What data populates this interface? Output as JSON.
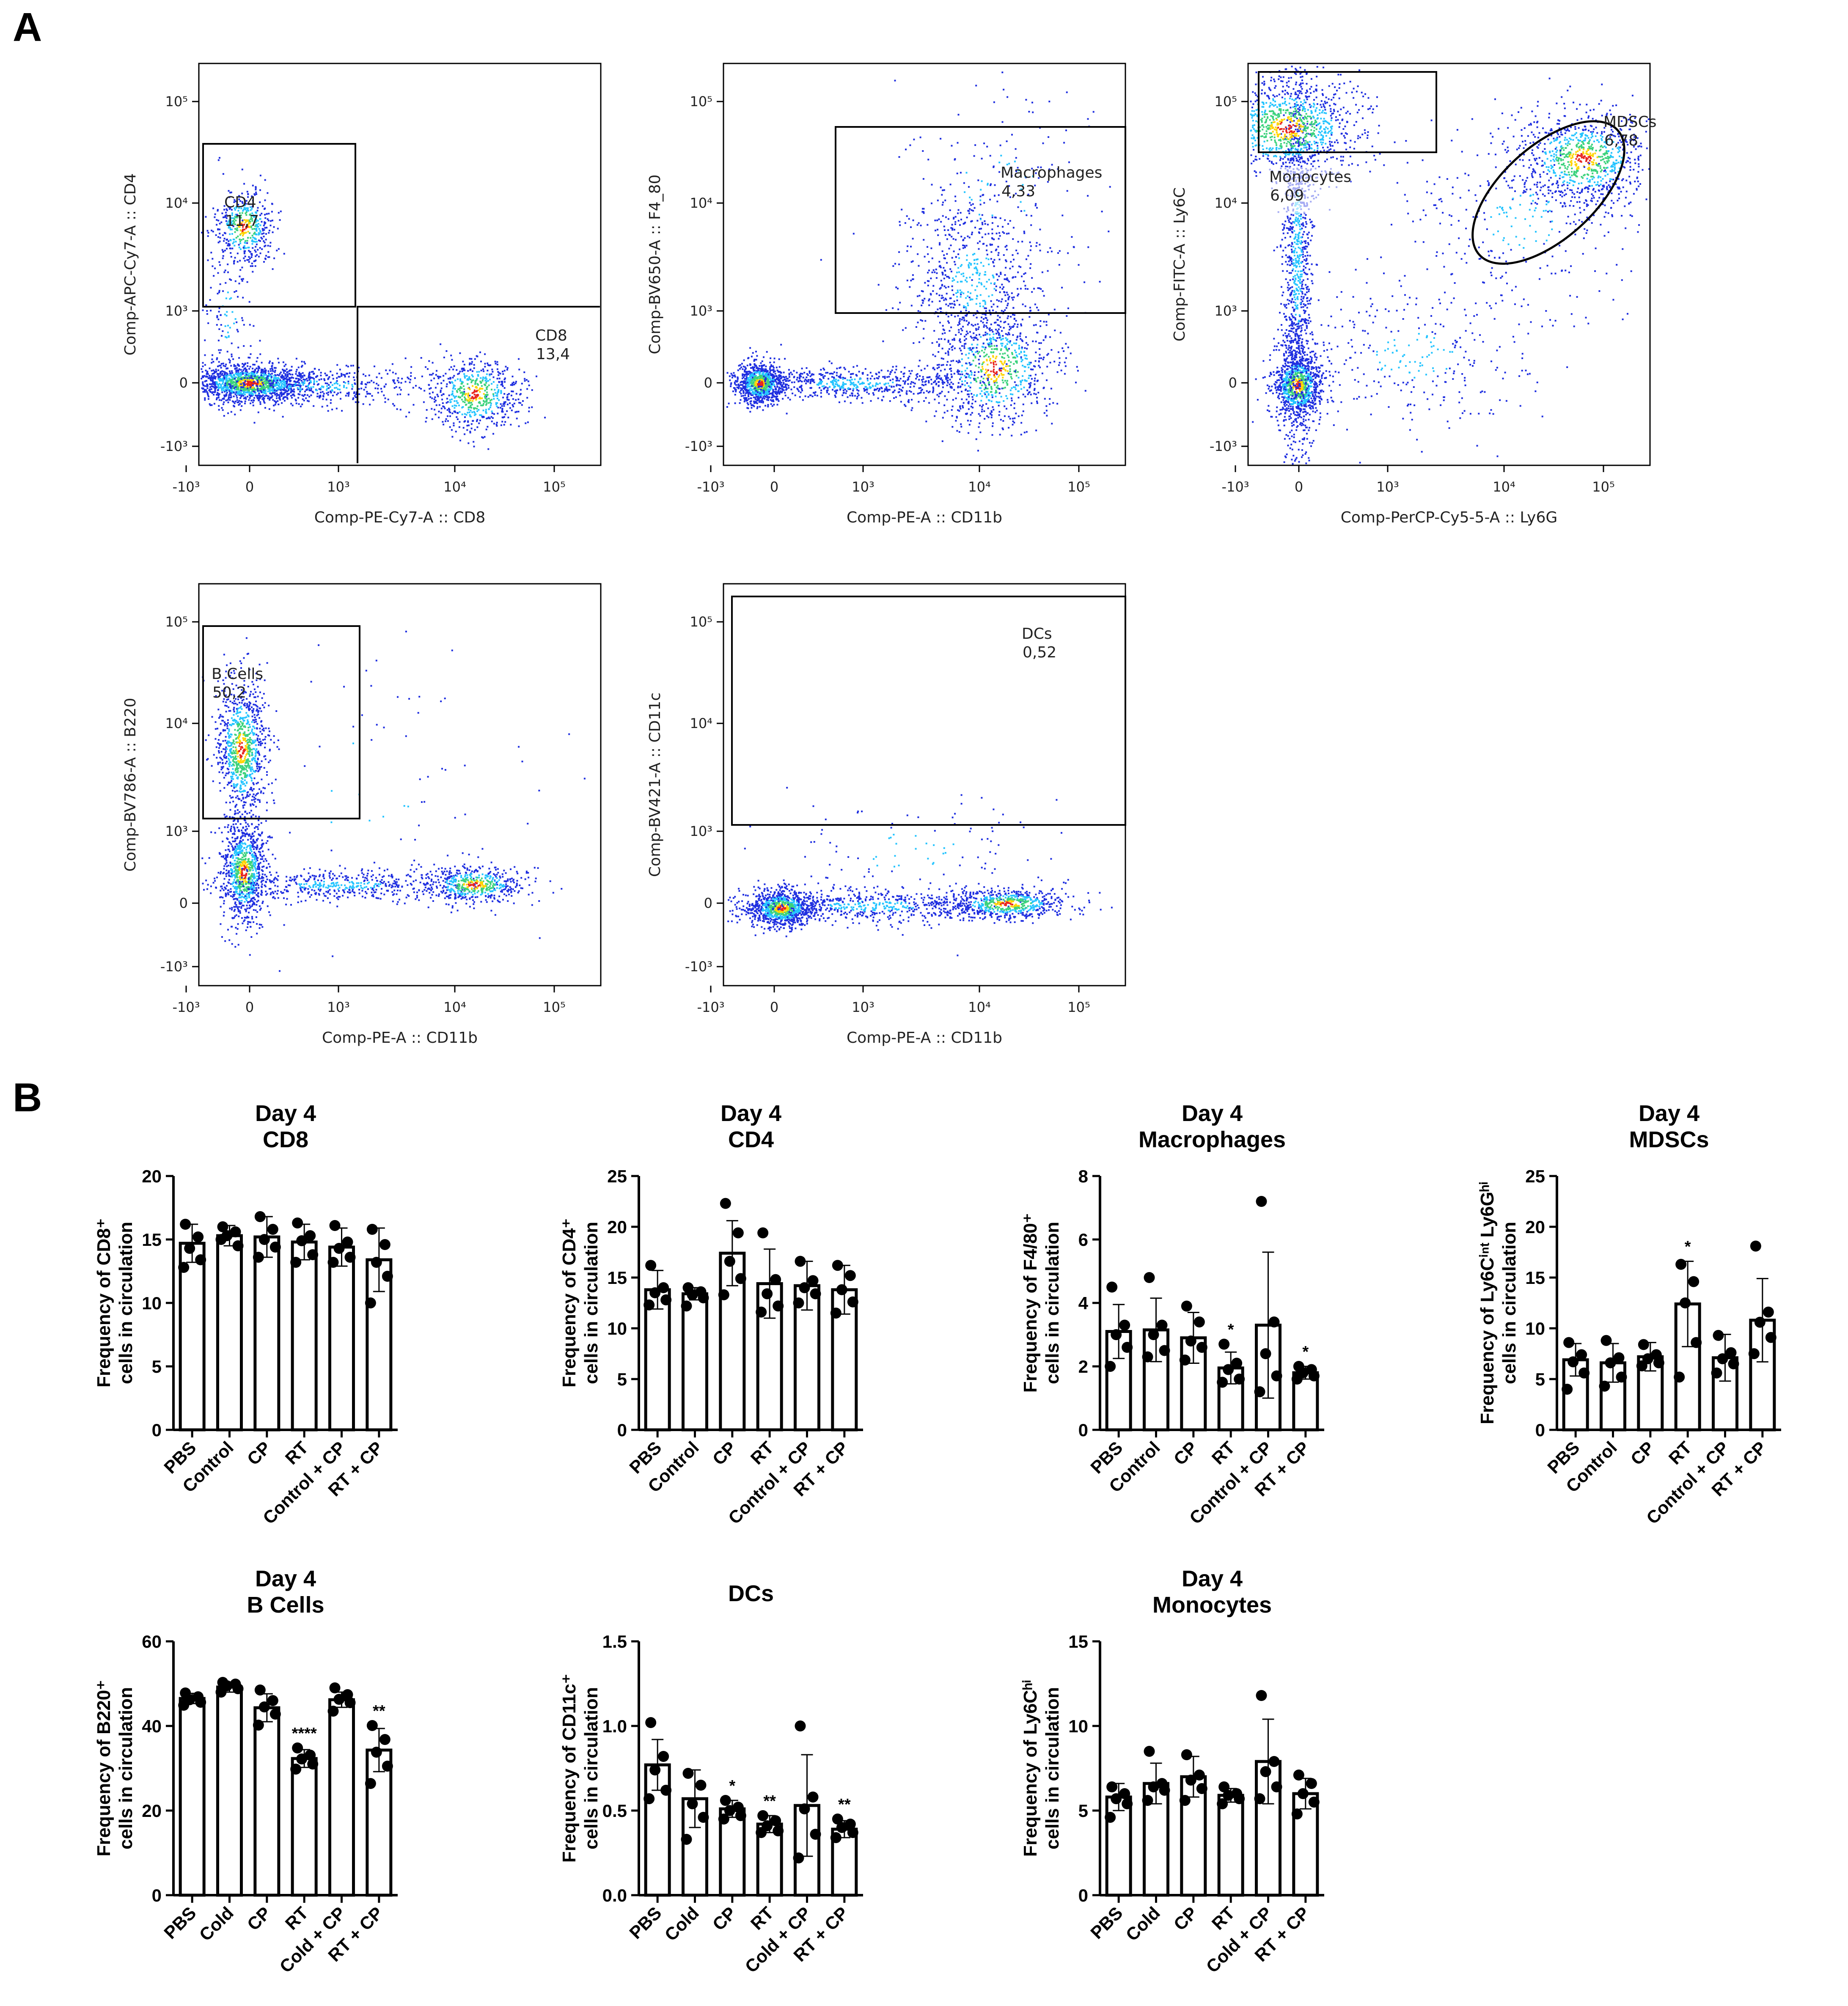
{
  "panel_labels": {
    "a": "A",
    "b": "B"
  },
  "colors": {
    "scatter_low": "#1f2fe0",
    "scatter_mid": "#25c4ff",
    "scatter_high": "#ffd400",
    "scatter_peak": "#e8251f",
    "bar_outline": "#000000",
    "dot": "#000000"
  },
  "flow_plots": [
    {
      "xlabel": "Comp-PE-Cy7-A :: CD8",
      "ylabel": "Comp-APC-Cy7-A :: CD4",
      "xticks": [
        "-10³",
        "0",
        "10³",
        "10⁴",
        "10⁵"
      ],
      "yticks": [
        "10⁵",
        "10⁴",
        "10³",
        "0",
        "-10³"
      ],
      "gates": [
        {
          "name": "CD4",
          "value": "11,7"
        },
        {
          "name": "CD8",
          "value": "13,4"
        }
      ]
    },
    {
      "xlabel": "Comp-PE-A :: CD11b",
      "ylabel": "Comp-BV650-A :: F4_80",
      "xticks": [
        "-10³",
        "0",
        "10³",
        "10⁴",
        "10⁵"
      ],
      "yticks": [
        "10⁵",
        "10⁴",
        "10³",
        "0",
        "-10³"
      ],
      "gates": [
        {
          "name": "Macrophages",
          "value": "4,33"
        }
      ]
    },
    {
      "xlabel": "Comp-PerCP-Cy5-5-A :: Ly6G",
      "ylabel": "Comp-FITC-A :: Ly6C",
      "xticks": [
        "-10³",
        "0",
        "10³",
        "10⁴",
        "10⁵"
      ],
      "yticks": [
        "10⁵",
        "10⁴",
        "10³",
        "0",
        "-10³"
      ],
      "gates": [
        {
          "name": "Monocytes",
          "value": "6,09"
        },
        {
          "name": "MDSCs",
          "value": "6,78"
        }
      ]
    },
    {
      "xlabel": "Comp-PE-A :: CD11b",
      "ylabel": "Comp-BV786-A :: B220",
      "xticks": [
        "-10³",
        "0",
        "10³",
        "10⁴",
        "10⁵"
      ],
      "yticks": [
        "10⁵",
        "10⁴",
        "10³",
        "0",
        "-10³"
      ],
      "gates": [
        {
          "name": "B Cells",
          "value": "50,2"
        }
      ]
    },
    {
      "xlabel": "Comp-PE-A :: CD11b",
      "ylabel": "Comp-BV421-A :: CD11c",
      "xticks": [
        "-10³",
        "0",
        "10³",
        "10⁴",
        "10⁵"
      ],
      "yticks": [
        "10⁵",
        "10⁴",
        "10³",
        "0",
        "-10³"
      ],
      "gates": [
        {
          "name": "DCs",
          "value": "0,52"
        }
      ]
    }
  ],
  "chart_data": [
    {
      "type": "bar",
      "title": [
        "Day 4",
        "CD8"
      ],
      "ylabel": [
        "Frequency of CD8⁺",
        "cells in circulation"
      ],
      "categories": [
        "PBS",
        "Control",
        "CP",
        "RT",
        "Control + CP",
        "RT + CP"
      ],
      "values": [
        14.7,
        15.3,
        15.2,
        14.8,
        14.4,
        13.4
      ],
      "sd": [
        1.5,
        0.8,
        1.6,
        1.4,
        1.5,
        2.5
      ],
      "points": [
        [
          16.2,
          15.2,
          14.3,
          13.4,
          12.8
        ],
        [
          16.0,
          15.6,
          15.3,
          14.5,
          15.0
        ],
        [
          16.8,
          15.8,
          15.0,
          14.4,
          13.6
        ],
        [
          16.3,
          15.3,
          14.9,
          13.8,
          13.2
        ],
        [
          16.1,
          14.8,
          14.3,
          13.6,
          13.2
        ],
        [
          15.8,
          14.6,
          13.2,
          12.1,
          10.0
        ]
      ],
      "significance": [
        "",
        "",
        "",
        "",
        "",
        ""
      ],
      "ylim": [
        0,
        20
      ],
      "yticks": [
        "0",
        "5",
        "10",
        "15",
        "20"
      ]
    },
    {
      "type": "bar",
      "title": [
        "Day 4",
        "CD4"
      ],
      "ylabel": [
        "Frequency of CD4⁺",
        "cells in circulation"
      ],
      "categories": [
        "PBS",
        "Control",
        "CP",
        "RT",
        "Control + CP",
        "RT + CP"
      ],
      "values": [
        13.8,
        13.4,
        17.4,
        14.4,
        14.2,
        13.8
      ],
      "sd": [
        1.9,
        0.6,
        3.2,
        3.4,
        2.4,
        2.4
      ],
      "points": [
        [
          16.2,
          14.0,
          13.5,
          12.8,
          12.3
        ],
        [
          14.0,
          13.6,
          13.3,
          13.0,
          12.2
        ],
        [
          22.3,
          19.4,
          16.6,
          14.9,
          13.3
        ],
        [
          19.4,
          14.8,
          13.4,
          12.2,
          11.6
        ],
        [
          16.6,
          14.7,
          14.0,
          13.4,
          12.5
        ],
        [
          16.2,
          15.2,
          13.8,
          12.6,
          11.5
        ]
      ],
      "significance": [
        "",
        "",
        "",
        "",
        "",
        ""
      ],
      "ylim": [
        0,
        25
      ],
      "yticks": [
        "0",
        "5",
        "10",
        "15",
        "20",
        "25"
      ]
    },
    {
      "type": "bar",
      "title": [
        "Day 4",
        "Macrophages"
      ],
      "ylabel": [
        "Frequency of F4/80⁺",
        "cells in circulation"
      ],
      "categories": [
        "PBS",
        "Control",
        "CP",
        "RT",
        "Control + CP",
        "RT + CP"
      ],
      "values": [
        3.1,
        3.15,
        2.9,
        1.95,
        3.3,
        1.8
      ],
      "sd": [
        0.85,
        1.0,
        0.8,
        0.5,
        2.3,
        0.2
      ],
      "points": [
        [
          4.5,
          3.3,
          3.0,
          2.6,
          2.0
        ],
        [
          4.8,
          3.3,
          3.0,
          2.5,
          2.3
        ],
        [
          3.9,
          3.4,
          2.8,
          2.6,
          2.2
        ],
        [
          2.7,
          2.1,
          1.9,
          1.6,
          1.5
        ],
        [
          7.2,
          3.4,
          2.4,
          1.7,
          1.2
        ],
        [
          2.0,
          1.9,
          1.8,
          1.7,
          1.6
        ]
      ],
      "significance": [
        "",
        "",
        "",
        "*",
        "",
        "*"
      ],
      "ylim": [
        0,
        8
      ],
      "yticks": [
        "0",
        "2",
        "4",
        "6",
        "8"
      ]
    },
    {
      "type": "bar",
      "title": [
        "Day 4",
        "MDSCs"
      ],
      "ylabel": [
        "Frequency of Ly6Cⁱⁿᵗ Ly6Gʰⁱ",
        "cells in circulation"
      ],
      "categories": [
        "PBS",
        "Control",
        "CP",
        "RT",
        "Control + CP",
        "RT + CP"
      ],
      "values": [
        6.9,
        6.6,
        7.2,
        12.4,
        7.1,
        10.8
      ],
      "sd": [
        1.6,
        1.9,
        1.4,
        4.2,
        2.3,
        4.1
      ],
      "points": [
        [
          8.6,
          7.4,
          6.7,
          5.6,
          4.0
        ],
        [
          8.8,
          7.1,
          6.6,
          5.2,
          4.3
        ],
        [
          8.4,
          7.4,
          7.0,
          6.6,
          6.3
        ],
        [
          16.3,
          14.6,
          12.5,
          8.6,
          5.2
        ],
        [
          9.3,
          7.6,
          7.0,
          6.5,
          5.6
        ],
        [
          18.1,
          11.6,
          10.6,
          9.1,
          7.5
        ]
      ],
      "significance": [
        "",
        "",
        "",
        "*",
        "",
        ""
      ],
      "ylim": [
        0,
        25
      ],
      "yticks": [
        "0",
        "5",
        "10",
        "15",
        "20",
        "25"
      ]
    },
    {
      "type": "bar",
      "title": [
        "Day 4",
        "B Cells"
      ],
      "ylabel": [
        "Frequency of B220⁺",
        "cells in circulation"
      ],
      "categories": [
        "PBS",
        "Cold",
        "CP",
        "RT",
        "Cold + CP",
        "RT + CP"
      ],
      "values": [
        46.5,
        49.2,
        44.3,
        32.3,
        46.2,
        34.3
      ],
      "sd": [
        1.2,
        1.2,
        3.3,
        2.1,
        1.8,
        5.1
      ],
      "points": [
        [
          47.8,
          46.9,
          46.2,
          45.6,
          44.9
        ],
        [
          50.3,
          49.9,
          49.5,
          48.8,
          48.0
        ],
        [
          48.5,
          46.0,
          44.5,
          42.8,
          40.2
        ],
        [
          34.8,
          33.1,
          32.2,
          31.0,
          29.8
        ],
        [
          49.0,
          47.4,
          46.3,
          45.5,
          43.5
        ],
        [
          40.1,
          36.8,
          33.8,
          30.5,
          26.4
        ]
      ],
      "significance": [
        "",
        "",
        "",
        "****",
        "",
        "**"
      ],
      "ylim": [
        0,
        60
      ],
      "yticks": [
        "0",
        "20",
        "40",
        "60"
      ]
    },
    {
      "type": "bar",
      "title": [
        "DCs"
      ],
      "ylabel": [
        "Frequency of CD11c⁺",
        "cells in circulation"
      ],
      "categories": [
        "PBS",
        "Cold",
        "CP",
        "RT",
        "Cold + CP",
        "RT + CP"
      ],
      "values": [
        0.77,
        0.57,
        0.51,
        0.42,
        0.53,
        0.39
      ],
      "sd": [
        0.15,
        0.17,
        0.05,
        0.05,
        0.3,
        0.05
      ],
      "points": [
        [
          1.02,
          0.82,
          0.74,
          0.62,
          0.57
        ],
        [
          0.72,
          0.65,
          0.54,
          0.46,
          0.33
        ],
        [
          0.56,
          0.52,
          0.5,
          0.47,
          0.45
        ],
        [
          0.47,
          0.44,
          0.41,
          0.38,
          0.37
        ],
        [
          1.0,
          0.58,
          0.51,
          0.36,
          0.22
        ],
        [
          0.45,
          0.42,
          0.4,
          0.37,
          0.34
        ]
      ],
      "significance": [
        "",
        "",
        "*",
        "**",
        "",
        "**"
      ],
      "ylim": [
        0,
        1.5
      ],
      "yticks": [
        "0.0",
        "0.5",
        "1.0",
        "1.5"
      ]
    },
    {
      "type": "bar",
      "title": [
        "Day 4",
        "Monocytes"
      ],
      "ylabel": [
        "Frequency of Ly6Cʰⁱ",
        "cells in circulation"
      ],
      "categories": [
        "PBS",
        "Cold",
        "CP",
        "RT",
        "Cold + CP",
        "RT + CP"
      ],
      "values": [
        5.8,
        6.6,
        7.0,
        5.9,
        7.9,
        6.0
      ],
      "sd": [
        0.8,
        1.2,
        1.2,
        0.4,
        2.5,
        0.9
      ],
      "points": [
        [
          6.4,
          6.0,
          5.7,
          5.4,
          4.6
        ],
        [
          8.5,
          6.6,
          6.4,
          6.2,
          5.6
        ],
        [
          8.3,
          7.1,
          6.8,
          6.3,
          5.6
        ],
        [
          6.4,
          6.0,
          5.9,
          5.7,
          5.4
        ],
        [
          11.8,
          7.9,
          7.3,
          6.4,
          5.7
        ],
        [
          7.1,
          6.6,
          6.0,
          5.5,
          4.8
        ]
      ],
      "significance": [
        "",
        "",
        "",
        "",
        "",
        ""
      ],
      "ylim": [
        0,
        15
      ],
      "yticks": [
        "0",
        "5",
        "10",
        "15"
      ]
    }
  ]
}
